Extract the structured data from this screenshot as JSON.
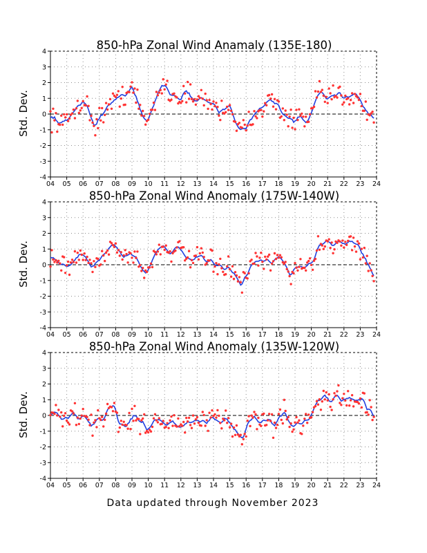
{
  "footer": "Data updated through November 2023",
  "colors": {
    "point": "#ff3333",
    "line": "#1f3fe0",
    "grid": "#8a8a8a",
    "zero": "#000000"
  },
  "chart_data": [
    {
      "type": "line",
      "title": "850-hPa Zonal Wind Anamaly (135E-180)",
      "ylabel": "Std. Dev.",
      "xticks": [
        "04",
        "05",
        "06",
        "07",
        "08",
        "09",
        "10",
        "11",
        "12",
        "13",
        "14",
        "15",
        "16",
        "17",
        "18",
        "19",
        "20",
        "21",
        "22",
        "23",
        "24"
      ],
      "yticks": [
        -4,
        -3,
        -2,
        -1,
        0,
        1,
        2,
        3,
        4
      ],
      "xlim": [
        2004,
        2024
      ],
      "ylim": [
        -4,
        4
      ],
      "grid": true,
      "series": [
        {
          "values_anchor": [
            [
              2004.0,
              -0.1
            ],
            [
              2004.3,
              -0.3
            ],
            [
              2004.6,
              -0.6
            ],
            [
              2005.0,
              -0.5
            ],
            [
              2005.3,
              0.0
            ],
            [
              2005.7,
              0.6
            ],
            [
              2006.0,
              0.9
            ],
            [
              2006.3,
              0.3
            ],
            [
              2006.7,
              -0.7
            ],
            [
              2007.0,
              -0.3
            ],
            [
              2007.5,
              0.5
            ],
            [
              2008.0,
              0.8
            ],
            [
              2008.3,
              1.3
            ],
            [
              2008.7,
              1.3
            ],
            [
              2009.0,
              1.7
            ],
            [
              2009.3,
              0.9
            ],
            [
              2009.7,
              -0.3
            ],
            [
              2010.0,
              -0.4
            ],
            [
              2010.4,
              0.8
            ],
            [
              2010.8,
              1.9
            ],
            [
              2011.1,
              1.7
            ],
            [
              2011.5,
              1.2
            ],
            [
              2012.0,
              1.0
            ],
            [
              2012.3,
              1.6
            ],
            [
              2012.6,
              1.0
            ],
            [
              2013.0,
              0.8
            ],
            [
              2013.3,
              1.0
            ],
            [
              2013.6,
              0.8
            ],
            [
              2014.0,
              0.7
            ],
            [
              2014.3,
              0.1
            ],
            [
              2014.7,
              0.4
            ],
            [
              2015.0,
              0.6
            ],
            [
              2015.3,
              -0.3
            ],
            [
              2015.6,
              -1.1
            ],
            [
              2016.0,
              -1.0
            ],
            [
              2016.3,
              -0.2
            ],
            [
              2016.7,
              0.3
            ],
            [
              2017.0,
              0.6
            ],
            [
              2017.5,
              0.8
            ],
            [
              2018.0,
              0.6
            ],
            [
              2018.3,
              -0.1
            ],
            [
              2018.7,
              -0.3
            ],
            [
              2019.0,
              -0.5
            ],
            [
              2019.3,
              -0.2
            ],
            [
              2019.7,
              -0.6
            ],
            [
              2020.0,
              0.0
            ],
            [
              2020.3,
              0.9
            ],
            [
              2020.7,
              1.4
            ],
            [
              2021.0,
              0.9
            ],
            [
              2021.3,
              1.1
            ],
            [
              2021.7,
              1.3
            ],
            [
              2022.0,
              1.1
            ],
            [
              2022.3,
              1.2
            ],
            [
              2022.7,
              1.4
            ],
            [
              2023.0,
              0.9
            ],
            [
              2023.3,
              0.3
            ],
            [
              2023.6,
              0.0
            ],
            [
              2023.8,
              -0.3
            ]
          ],
          "scatter": 0.45
        }
      ]
    },
    {
      "type": "line",
      "title": "850-hPa Zonal Wind Anomaly (175W-140W)",
      "ylabel": "Std. Dev.",
      "xticks": [
        "04",
        "05",
        "06",
        "07",
        "08",
        "09",
        "10",
        "11",
        "12",
        "13",
        "14",
        "15",
        "16",
        "17",
        "18",
        "19",
        "20",
        "21",
        "22",
        "23",
        "24"
      ],
      "yticks": [
        -4,
        -3,
        -2,
        -1,
        0,
        1,
        2,
        3,
        4
      ],
      "xlim": [
        2004,
        2024
      ],
      "ylim": [
        -4,
        4
      ],
      "grid": true,
      "series": [
        {
          "values_anchor": [
            [
              2004.0,
              0.5
            ],
            [
              2004.3,
              0.4
            ],
            [
              2004.6,
              0.0
            ],
            [
              2005.0,
              -0.1
            ],
            [
              2005.4,
              0.1
            ],
            [
              2005.8,
              0.7
            ],
            [
              2006.1,
              0.6
            ],
            [
              2006.5,
              -0.2
            ],
            [
              2006.8,
              0.1
            ],
            [
              2007.1,
              0.5
            ],
            [
              2007.5,
              1.0
            ],
            [
              2007.9,
              1.3
            ],
            [
              2008.2,
              1.0
            ],
            [
              2008.5,
              0.4
            ],
            [
              2008.9,
              0.8
            ],
            [
              2009.2,
              0.5
            ],
            [
              2009.6,
              -0.2
            ],
            [
              2009.9,
              -0.6
            ],
            [
              2010.2,
              0.2
            ],
            [
              2010.6,
              1.0
            ],
            [
              2010.9,
              1.3
            ],
            [
              2011.3,
              0.7
            ],
            [
              2011.7,
              1.2
            ],
            [
              2012.0,
              0.8
            ],
            [
              2012.4,
              0.4
            ],
            [
              2012.8,
              0.3
            ],
            [
              2013.2,
              0.5
            ],
            [
              2013.6,
              0.2
            ],
            [
              2014.0,
              0.1
            ],
            [
              2014.5,
              -0.1
            ],
            [
              2015.0,
              -0.3
            ],
            [
              2015.3,
              -0.6
            ],
            [
              2015.7,
              -1.4
            ],
            [
              2016.0,
              -0.7
            ],
            [
              2016.4,
              0.0
            ],
            [
              2016.8,
              0.2
            ],
            [
              2017.2,
              0.3
            ],
            [
              2017.6,
              0.1
            ],
            [
              2018.0,
              0.5
            ],
            [
              2018.3,
              0.2
            ],
            [
              2018.7,
              -0.6
            ],
            [
              2019.1,
              -0.1
            ],
            [
              2019.5,
              -0.2
            ],
            [
              2019.9,
              0.0
            ],
            [
              2020.2,
              0.5
            ],
            [
              2020.5,
              1.2
            ],
            [
              2020.9,
              1.6
            ],
            [
              2021.3,
              1.3
            ],
            [
              2021.7,
              1.5
            ],
            [
              2022.1,
              1.3
            ],
            [
              2022.5,
              1.5
            ],
            [
              2022.9,
              1.3
            ],
            [
              2023.2,
              0.5
            ],
            [
              2023.6,
              -0.2
            ],
            [
              2023.8,
              -0.6
            ]
          ],
          "scatter": 0.4
        }
      ]
    },
    {
      "type": "line",
      "title": "850-hPa Zonal Wind Anomaly (135W-120W)",
      "ylabel": "Std. Dev.",
      "xticks": [
        "04",
        "05",
        "06",
        "07",
        "08",
        "09",
        "10",
        "11",
        "12",
        "13",
        "14",
        "15",
        "16",
        "17",
        "18",
        "19",
        "20",
        "21",
        "22",
        "23",
        "24"
      ],
      "yticks": [
        -4,
        -3,
        -2,
        -1,
        0,
        1,
        2,
        3,
        4
      ],
      "xlim": [
        2004,
        2024
      ],
      "ylim": [
        -4,
        4
      ],
      "grid": true,
      "series": [
        {
          "values_anchor": [
            [
              2004.0,
              0.0
            ],
            [
              2004.3,
              0.2
            ],
            [
              2004.7,
              -0.3
            ],
            [
              2005.0,
              -0.1
            ],
            [
              2005.4,
              0.1
            ],
            [
              2005.8,
              -0.2
            ],
            [
              2006.1,
              -0.1
            ],
            [
              2006.5,
              -0.7
            ],
            [
              2006.9,
              -0.2
            ],
            [
              2007.2,
              -0.3
            ],
            [
              2007.6,
              0.5
            ],
            [
              2007.9,
              0.7
            ],
            [
              2008.2,
              -0.4
            ],
            [
              2008.6,
              -0.8
            ],
            [
              2008.9,
              -0.3
            ],
            [
              2009.2,
              0.0
            ],
            [
              2009.6,
              -0.4
            ],
            [
              2009.9,
              -0.9
            ],
            [
              2010.3,
              -0.4
            ],
            [
              2010.7,
              -0.2
            ],
            [
              2011.1,
              -0.6
            ],
            [
              2011.5,
              -0.4
            ],
            [
              2011.9,
              -0.9
            ],
            [
              2012.3,
              -0.5
            ],
            [
              2012.7,
              -0.4
            ],
            [
              2013.1,
              -0.3
            ],
            [
              2013.5,
              -0.5
            ],
            [
              2013.9,
              -0.2
            ],
            [
              2014.3,
              -0.6
            ],
            [
              2014.7,
              -0.2
            ],
            [
              2015.1,
              -0.5
            ],
            [
              2015.5,
              -1.2
            ],
            [
              2015.8,
              -1.4
            ],
            [
              2016.1,
              -0.5
            ],
            [
              2016.5,
              -0.1
            ],
            [
              2016.9,
              -0.5
            ],
            [
              2017.3,
              -0.2
            ],
            [
              2017.7,
              -0.6
            ],
            [
              2018.0,
              -0.2
            ],
            [
              2018.3,
              0.2
            ],
            [
              2018.7,
              -0.5
            ],
            [
              2019.0,
              -0.7
            ],
            [
              2019.4,
              -0.3
            ],
            [
              2019.8,
              -0.4
            ],
            [
              2020.1,
              0.3
            ],
            [
              2020.4,
              1.0
            ],
            [
              2020.8,
              1.3
            ],
            [
              2021.1,
              0.9
            ],
            [
              2021.5,
              1.2
            ],
            [
              2021.9,
              0.9
            ],
            [
              2022.3,
              1.2
            ],
            [
              2022.7,
              1.0
            ],
            [
              2023.1,
              1.1
            ],
            [
              2023.4,
              0.5
            ],
            [
              2023.7,
              0.2
            ],
            [
              2023.8,
              0.0
            ]
          ],
          "scatter": 0.45
        }
      ]
    }
  ]
}
